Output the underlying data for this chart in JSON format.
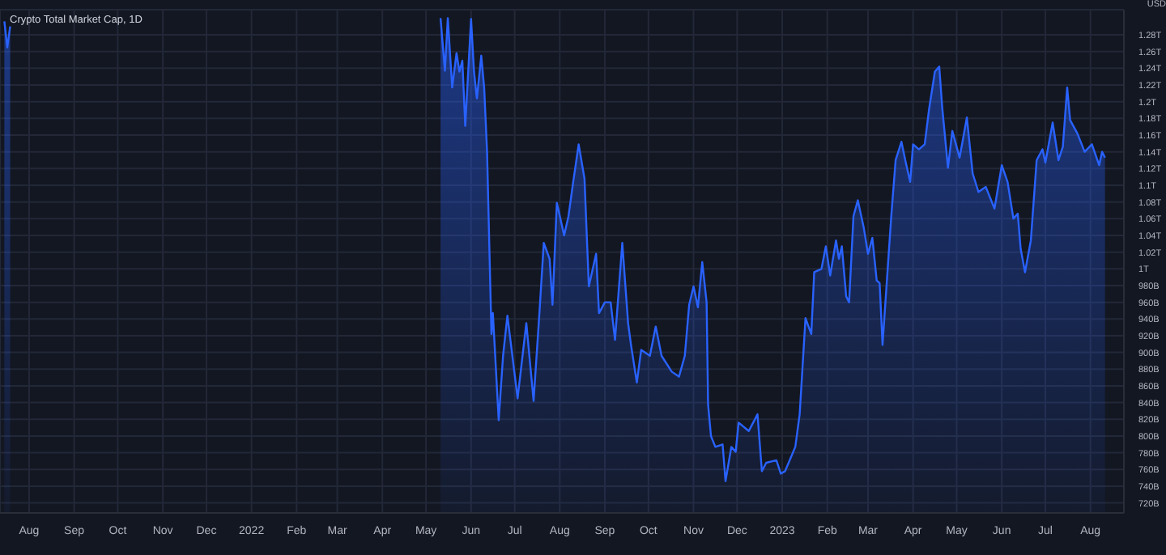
{
  "chart_data": {
    "type": "area",
    "title": "Crypto Total Market Cap, 1D",
    "ylabel": "USD",
    "x": [
      "2021-07-15",
      "2021-07-17",
      "2021-07-19",
      "2021-07-21",
      "2022-05-11",
      "2022-05-14",
      "2022-05-16",
      "2022-05-19",
      "2022-05-22",
      "2022-05-24",
      "2022-05-26",
      "2022-05-28",
      "2022-06-01",
      "2022-06-03",
      "2022-06-05",
      "2022-06-08",
      "2022-06-10",
      "2022-06-12",
      "2022-06-15",
      "2022-06-16",
      "2022-06-20",
      "2022-06-23",
      "2022-06-26",
      "2022-07-03",
      "2022-07-06",
      "2022-07-09",
      "2022-07-14",
      "2022-07-18",
      "2022-07-21",
      "2022-07-25",
      "2022-07-27",
      "2022-07-30",
      "2022-08-04",
      "2022-08-07",
      "2022-08-10",
      "2022-08-14",
      "2022-08-18",
      "2022-08-21",
      "2022-08-26",
      "2022-08-28",
      "2022-09-01",
      "2022-09-05",
      "2022-09-08",
      "2022-09-13",
      "2022-09-17",
      "2022-09-19",
      "2022-09-23",
      "2022-09-26",
      "2022-10-02",
      "2022-10-06",
      "2022-10-10",
      "2022-10-17",
      "2022-10-22",
      "2022-10-26",
      "2022-10-29",
      "2022-11-01",
      "2022-11-04",
      "2022-11-07",
      "2022-11-10",
      "2022-11-11",
      "2022-11-13",
      "2022-11-16",
      "2022-11-21",
      "2022-11-23",
      "2022-11-27",
      "2022-11-30",
      "2022-12-02",
      "2022-12-09",
      "2022-12-15",
      "2022-12-18",
      "2022-12-21",
      "2022-12-28",
      "2022-12-31",
      "2023-01-03",
      "2023-01-10",
      "2023-01-13",
      "2023-01-17",
      "2023-01-21",
      "2023-01-23",
      "2023-01-28",
      "2023-01-31",
      "2023-02-03",
      "2023-02-07",
      "2023-02-09",
      "2023-02-11",
      "2023-02-14",
      "2023-02-16",
      "2023-02-19",
      "2023-02-22",
      "2023-02-26",
      "2023-03-01",
      "2023-03-04",
      "2023-03-07",
      "2023-03-09",
      "2023-03-11",
      "2023-03-15",
      "2023-03-17",
      "2023-03-20",
      "2023-03-24",
      "2023-03-27",
      "2023-03-30",
      "2023-04-01",
      "2023-04-05",
      "2023-04-09",
      "2023-04-12",
      "2023-04-16",
      "2023-04-19",
      "2023-04-21",
      "2023-04-25",
      "2023-04-28",
      "2023-05-03",
      "2023-05-08",
      "2023-05-12",
      "2023-05-16",
      "2023-05-21",
      "2023-05-27",
      "2023-06-01",
      "2023-06-05",
      "2023-06-09",
      "2023-06-12",
      "2023-06-14",
      "2023-06-17",
      "2023-06-21",
      "2023-06-25",
      "2023-06-29",
      "2023-07-01",
      "2023-07-06",
      "2023-07-10",
      "2023-07-13",
      "2023-07-16",
      "2023-07-18",
      "2023-07-23",
      "2023-07-28",
      "2023-08-02",
      "2023-08-07",
      "2023-08-09",
      "2023-08-11"
    ],
    "series": [
      {
        "color": "#2962ff",
        "values": [
          1296000000000.0,
          1265000000000.0,
          1290000000000.0,
          null,
          1300000000000.0,
          1237000000000.0,
          1300000000000.0,
          1217000000000.0,
          1258000000000.0,
          1236000000000.0,
          1249000000000.0,
          1171000000000.0,
          1299000000000.0,
          1236000000000.0,
          1204000000000.0,
          1255000000000.0,
          1217000000000.0,
          1140000000000.0,
          922000000000.0,
          947000000000.0,
          819000000000.0,
          896000000000.0,
          944000000000.0,
          845000000000.0,
          890000000000.0,
          935000000000.0,
          842000000000.0,
          947000000000.0,
          1031000000000.0,
          1012000000000.0,
          957000000000.0,
          1079000000000.0,
          1040000000000.0,
          1063000000000.0,
          1101000000000.0,
          1149000000000.0,
          1108000000000.0,
          979000000000.0,
          1018000000000.0,
          947000000000.0,
          960000000000.0,
          960000000000.0,
          915000000000.0,
          1031000000000.0,
          935000000000.0,
          909000000000.0,
          864000000000.0,
          903000000000.0,
          896000000000.0,
          931000000000.0,
          896000000000.0,
          877000000000.0,
          871000000000.0,
          896000000000.0,
          957000000000.0,
          979000000000.0,
          954000000000.0,
          1008000000000.0,
          960000000000.0,
          838000000000.0,
          800000000000.0,
          787000000000.0,
          790000000000.0,
          746000000000.0,
          787000000000.0,
          781000000000.0,
          816000000000.0,
          806000000000.0,
          826000000000.0,
          758000000000.0,
          768000000000.0,
          771000000000.0,
          755000000000.0,
          758000000000.0,
          787000000000.0,
          826000000000.0,
          941000000000.0,
          922000000000.0,
          996000000000.0,
          1000000000000.0,
          1027000000000.0,
          992000000000.0,
          1034000000000.0,
          1012000000000.0,
          1027000000000.0,
          967000000000.0,
          960000000000.0,
          1063000000000.0,
          1082000000000.0,
          1050000000000.0,
          1018000000000.0,
          1037000000000.0,
          986000000000.0,
          983000000000.0,
          909000000000.0,
          1012000000000.0,
          1063000000000.0,
          1130000000000.0,
          1152000000000.0,
          1127000000000.0,
          1104000000000.0,
          1149000000000.0,
          1143000000000.0,
          1149000000000.0,
          1191000000000.0,
          1236000000000.0,
          1242000000000.0,
          1194000000000.0,
          1121000000000.0,
          1165000000000.0,
          1133000000000.0,
          1181000000000.0,
          1114000000000.0,
          1092000000000.0,
          1098000000000.0,
          1072000000000.0,
          1124000000000.0,
          1104000000000.0,
          1060000000000.0,
          1066000000000.0,
          1024000000000.0,
          996000000000.0,
          1034000000000.0,
          1130000000000.0,
          1143000000000.0,
          1127000000000.0,
          1175000000000.0,
          1130000000000.0,
          1146000000000.0,
          1217000000000.0,
          1178000000000.0,
          1162000000000.0,
          1140000000000.0,
          1149000000000.0,
          1124000000000.0,
          1140000000000.0,
          1133000000000.0
        ]
      }
    ],
    "xlim": [
      "2021-07-12",
      "2023-08-24"
    ],
    "xticks": [
      {
        "value": "2021-08-01",
        "label": "Aug"
      },
      {
        "value": "2021-09-01",
        "label": "Sep"
      },
      {
        "value": "2021-10-01",
        "label": "Oct"
      },
      {
        "value": "2021-11-01",
        "label": "Nov"
      },
      {
        "value": "2021-12-01",
        "label": "Dec"
      },
      {
        "value": "2022-01-01",
        "label": "2022"
      },
      {
        "value": "2022-02-01",
        "label": "Feb"
      },
      {
        "value": "2022-03-01",
        "label": "Mar"
      },
      {
        "value": "2022-04-01",
        "label": "Apr"
      },
      {
        "value": "2022-05-01",
        "label": "May"
      },
      {
        "value": "2022-06-01",
        "label": "Jun"
      },
      {
        "value": "2022-07-01",
        "label": "Jul"
      },
      {
        "value": "2022-08-01",
        "label": "Aug"
      },
      {
        "value": "2022-09-01",
        "label": "Sep"
      },
      {
        "value": "2022-10-01",
        "label": "Oct"
      },
      {
        "value": "2022-11-01",
        "label": "Nov"
      },
      {
        "value": "2022-12-01",
        "label": "Dec"
      },
      {
        "value": "2023-01-01",
        "label": "2023"
      },
      {
        "value": "2023-02-01",
        "label": "Feb"
      },
      {
        "value": "2023-03-01",
        "label": "Mar"
      },
      {
        "value": "2023-04-01",
        "label": "Apr"
      },
      {
        "value": "2023-05-01",
        "label": "May"
      },
      {
        "value": "2023-06-01",
        "label": "Jun"
      },
      {
        "value": "2023-07-01",
        "label": "Jul"
      },
      {
        "value": "2023-08-01",
        "label": "Aug"
      }
    ],
    "ylim": [
      708000000000.0,
      1310000000000.0
    ],
    "yticks": [
      {
        "value": 720000000000.0,
        "label": "720B"
      },
      {
        "value": 740000000000.0,
        "label": "740B"
      },
      {
        "value": 760000000000.0,
        "label": "760B"
      },
      {
        "value": 780000000000.0,
        "label": "780B"
      },
      {
        "value": 800000000000.0,
        "label": "800B"
      },
      {
        "value": 820000000000.0,
        "label": "820B"
      },
      {
        "value": 840000000000.0,
        "label": "840B"
      },
      {
        "value": 860000000000.0,
        "label": "860B"
      },
      {
        "value": 880000000000.0,
        "label": "880B"
      },
      {
        "value": 900000000000.0,
        "label": "900B"
      },
      {
        "value": 920000000000.0,
        "label": "920B"
      },
      {
        "value": 940000000000.0,
        "label": "940B"
      },
      {
        "value": 960000000000.0,
        "label": "960B"
      },
      {
        "value": 980000000000.0,
        "label": "980B"
      },
      {
        "value": 1000000000000.0,
        "label": "1T"
      },
      {
        "value": 1020000000000.0,
        "label": "1.02T"
      },
      {
        "value": 1040000000000.0,
        "label": "1.04T"
      },
      {
        "value": 1060000000000.0,
        "label": "1.06T"
      },
      {
        "value": 1080000000000.0,
        "label": "1.08T"
      },
      {
        "value": 1100000000000.0,
        "label": "1.1T"
      },
      {
        "value": 1120000000000.0,
        "label": "1.12T"
      },
      {
        "value": 1140000000000.0,
        "label": "1.14T"
      },
      {
        "value": 1160000000000.0,
        "label": "1.16T"
      },
      {
        "value": 1180000000000.0,
        "label": "1.18T"
      },
      {
        "value": 1200000000000.0,
        "label": "1.2T"
      },
      {
        "value": 1220000000000.0,
        "label": "1.22T"
      },
      {
        "value": 1240000000000.0,
        "label": "1.24T"
      },
      {
        "value": 1260000000000.0,
        "label": "1.26T"
      },
      {
        "value": 1280000000000.0,
        "label": "1.28T"
      }
    ],
    "grid": true,
    "marker": "none",
    "line_style": "solid"
  }
}
